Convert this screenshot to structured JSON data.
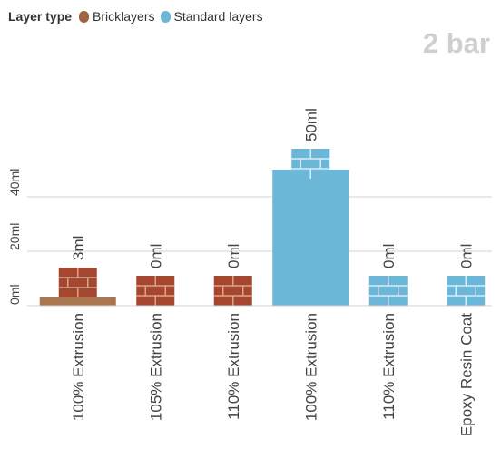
{
  "legend": {
    "title": "Layer type",
    "items": [
      {
        "label": "Bricklayers",
        "color": "#a5623f"
      },
      {
        "label": "Standard layers",
        "color": "#6cb6d8"
      }
    ]
  },
  "badge": "2 bar",
  "chart_data": {
    "type": "bar",
    "unit": "ml",
    "ylim": [
      0,
      60
    ],
    "yticks": [
      {
        "value": 0,
        "label": "0ml"
      },
      {
        "value": 20,
        "label": "20ml"
      },
      {
        "value": 40,
        "label": "40ml"
      }
    ],
    "bars": [
      {
        "category": "100% Extrusion",
        "value": 3,
        "label": "3ml",
        "series": "Bricklayers"
      },
      {
        "category": "105% Extrusion",
        "value": 0,
        "label": "0ml",
        "series": "Bricklayers"
      },
      {
        "category": "110% Extrusion",
        "value": 0,
        "label": "0ml",
        "series": "Bricklayers"
      },
      {
        "category": "100% Extrusion",
        "value": 50,
        "label": "50ml",
        "series": "Standard layers"
      },
      {
        "category": "110% Extrusion",
        "value": 0,
        "label": "0ml",
        "series": "Standard layers"
      },
      {
        "category": "Epoxy Resin Coat",
        "value": 0,
        "label": "0ml",
        "series": "Standard layers"
      }
    ],
    "colors": {
      "Bricklayers": {
        "bar": "#a8764f",
        "brick": "#a5472f",
        "mortar": "#d9a58f"
      },
      "Standard layers": {
        "bar": "#6cb6d8",
        "brick": "#6cb6d8",
        "mortar": "#d8edf7"
      }
    },
    "grid": true
  }
}
